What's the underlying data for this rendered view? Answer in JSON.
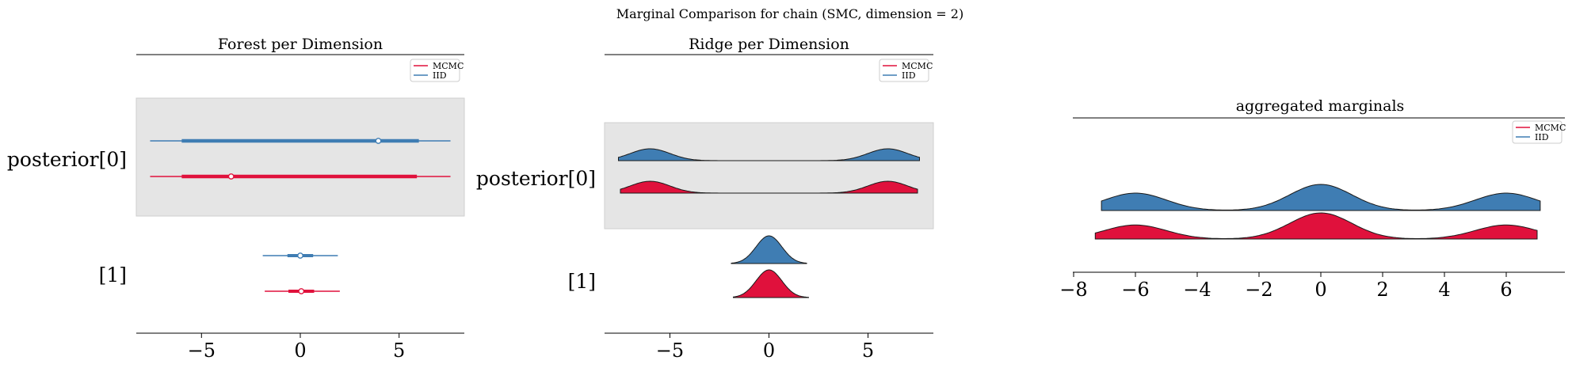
{
  "figure": {
    "suptitle": "Marginal Comparison for chain (SMC, dimension = 2)"
  },
  "colors": {
    "MCMC": "#e0113c",
    "IID": "#3f7db3",
    "shade": "#e5e5e5"
  },
  "legend": {
    "entries": [
      "MCMC",
      "IID"
    ]
  },
  "chart_data": [
    {
      "type": "forest",
      "title": "Forest per Dimension",
      "row_labels": [
        "posterior[0]",
        "[1]"
      ],
      "xlim": [
        -8.3,
        8.3
      ],
      "xticks": [
        -5,
        0,
        5
      ],
      "xtick_labels": [
        "−5",
        "0",
        "5"
      ],
      "legend_position": "top-right",
      "series": [
        {
          "name": "IID",
          "rows": [
            {
              "hdi94": [
                -7.6,
                7.6
              ],
              "hdi50": [
                -6.0,
                6.0
              ],
              "point": 3.95
            },
            {
              "hdi94": [
                -1.9,
                1.9
              ],
              "hdi50": [
                -0.65,
                0.65
              ],
              "point": 0.0
            }
          ]
        },
        {
          "name": "MCMC",
          "rows": [
            {
              "hdi94": [
                -7.6,
                7.6
              ],
              "hdi50": [
                -6.0,
                5.9
              ],
              "point": -3.5
            },
            {
              "hdi94": [
                -1.8,
                2.0
              ],
              "hdi50": [
                -0.6,
                0.7
              ],
              "point": 0.05
            }
          ]
        }
      ]
    },
    {
      "type": "ridge",
      "title": "Ridge per Dimension",
      "row_labels": [
        "posterior[0]",
        "[1]"
      ],
      "xlim": [
        -8.3,
        8.3
      ],
      "xticks": [
        -5,
        0,
        5
      ],
      "xtick_labels": [
        "−5",
        "0",
        "5"
      ],
      "legend_position": "top-right",
      "series": [
        {
          "name": "IID",
          "rows": [
            {
              "range": [
                -7.6,
                7.6
              ],
              "peaks": [
                [
                  -6,
                  1
                ],
                [
                  6,
                  1
                ]
              ],
              "sigma": 1
            },
            {
              "range": [
                -1.9,
                1.9
              ],
              "peaks": [
                [
                  0,
                  1
                ]
              ],
              "sigma": 0.65
            }
          ]
        },
        {
          "name": "MCMC",
          "rows": [
            {
              "range": [
                -7.5,
                7.5
              ],
              "peaks": [
                [
                  -6,
                  1
                ],
                [
                  6,
                  1
                ]
              ],
              "sigma": 1
            },
            {
              "range": [
                -1.8,
                2.0
              ],
              "peaks": [
                [
                  0,
                  1
                ]
              ],
              "sigma": 0.65
            }
          ]
        }
      ]
    },
    {
      "type": "ridge",
      "title": "aggregated marginals",
      "xlim": [
        -8,
        7.8
      ],
      "xticks": [
        -8,
        -6,
        -4,
        -2,
        0,
        2,
        4,
        6
      ],
      "xtick_labels": [
        "−8",
        "−6",
        "−4",
        "−2",
        "0",
        "2",
        "4",
        "6"
      ],
      "legend_position": "top-right",
      "series": [
        {
          "name": "IID",
          "range": [
            -7.1,
            7.1
          ],
          "peaks": [
            [
              -6,
              0.5
            ],
            [
              0,
              0.75
            ],
            [
              6,
              0.5
            ]
          ],
          "sigma": 1
        },
        {
          "name": "MCMC",
          "range": [
            -7.3,
            7.0
          ],
          "peaks": [
            [
              -6,
              0.5
            ],
            [
              0,
              0.93
            ],
            [
              6,
              0.5
            ]
          ],
          "sigma": 1
        }
      ]
    }
  ]
}
